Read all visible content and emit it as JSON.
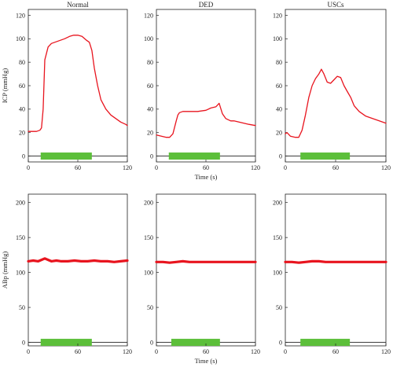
{
  "colors": {
    "trace": "#e8141e",
    "stim": "#5cbf3a",
    "frame": "#222222"
  },
  "chart_data": [
    {
      "type": "line",
      "title": "Normal",
      "ylabel": "ICP (mmHg)",
      "xlabel": "",
      "xlim": [
        0,
        120
      ],
      "ylim": [
        -5,
        125
      ],
      "xticks": [
        "0",
        "60",
        "120"
      ],
      "yticks": [
        "0",
        "20",
        "40",
        "60",
        "80",
        "100",
        "120"
      ],
      "stimulus": [
        15,
        77
      ],
      "x": [
        0,
        5,
        10,
        14,
        16,
        18,
        20,
        24,
        28,
        36,
        44,
        50,
        55,
        60,
        65,
        70,
        74,
        77,
        80,
        84,
        88,
        94,
        100,
        106,
        112,
        118,
        120
      ],
      "y": [
        21,
        21,
        21,
        22,
        24,
        40,
        82,
        93,
        96,
        98,
        100,
        102,
        103,
        103,
        102,
        99,
        97,
        90,
        75,
        60,
        48,
        40,
        35,
        32,
        29,
        27,
        26
      ]
    },
    {
      "type": "line",
      "title": "DED",
      "ylabel": "",
      "xlabel": "",
      "xlim": [
        0,
        120
      ],
      "ylim": [
        -5,
        125
      ],
      "xticks": [
        "0",
        "60",
        "120"
      ],
      "yticks": [
        "0",
        "20",
        "40",
        "60",
        "80",
        "100",
        "120"
      ],
      "stimulus": [
        15,
        77
      ],
      "x": [
        0,
        6,
        12,
        16,
        20,
        24,
        26,
        28,
        32,
        40,
        50,
        60,
        66,
        72,
        76,
        80,
        84,
        90,
        94,
        100,
        106,
        112,
        120
      ],
      "y": [
        18,
        17,
        16,
        16,
        19,
        30,
        35,
        37,
        38,
        38,
        38,
        39,
        41,
        42,
        45,
        36,
        32,
        30,
        30,
        29,
        28,
        27,
        26
      ]
    },
    {
      "type": "line",
      "title": "USCs",
      "ylabel": "",
      "xlabel": "",
      "xlim": [
        0,
        120
      ],
      "ylim": [
        -5,
        125
      ],
      "xticks": [
        "0",
        "60",
        "120"
      ],
      "yticks": [
        "0",
        "20",
        "40",
        "60",
        "80",
        "100",
        "120"
      ],
      "stimulus": [
        18,
        77
      ],
      "x": [
        0,
        2,
        6,
        12,
        16,
        20,
        24,
        28,
        32,
        36,
        40,
        43,
        46,
        50,
        54,
        58,
        62,
        66,
        70,
        74,
        78,
        82,
        88,
        96,
        104,
        112,
        120
      ],
      "y": [
        19,
        20,
        17,
        16,
        16,
        22,
        35,
        50,
        60,
        66,
        70,
        74,
        70,
        63,
        62,
        65,
        68,
        67,
        60,
        55,
        50,
        43,
        38,
        34,
        32,
        30,
        28
      ]
    },
    {
      "type": "line",
      "title": "",
      "ylabel": "ABp (mmHg)",
      "xlabel": "",
      "xlim": [
        0,
        120
      ],
      "ylim": [
        -5,
        212
      ],
      "xticks": [
        "0",
        "60",
        "120"
      ],
      "yticks": [
        "0",
        "50",
        "100",
        "150",
        "200"
      ],
      "stimulus": [
        15,
        77
      ],
      "x": [
        0,
        6,
        12,
        16,
        20,
        24,
        28,
        34,
        40,
        48,
        56,
        64,
        72,
        80,
        88,
        96,
        104,
        112,
        120
      ],
      "y": [
        116,
        117,
        116,
        118,
        120,
        118,
        116,
        117,
        116,
        116,
        117,
        116,
        116,
        117,
        116,
        116,
        115,
        116,
        117
      ]
    },
    {
      "type": "line",
      "title": "",
      "ylabel": "",
      "xlabel": "Time (s)",
      "xlim": [
        0,
        120
      ],
      "ylim": [
        -5,
        212
      ],
      "xticks": [
        "0",
        "60",
        "120"
      ],
      "yticks": [
        "0",
        "50",
        "100",
        "150",
        "200"
      ],
      "stimulus": [
        18,
        77
      ],
      "x": [
        0,
        8,
        16,
        24,
        32,
        40,
        48,
        56,
        64,
        72,
        80,
        88,
        96,
        104,
        112,
        120
      ],
      "y": [
        115,
        115,
        114,
        115,
        116,
        115,
        115,
        115,
        115,
        115,
        115,
        115,
        115,
        115,
        115,
        115
      ]
    },
    {
      "type": "line",
      "title": "",
      "ylabel": "",
      "xlabel": "",
      "xlim": [
        0,
        120
      ],
      "ylim": [
        -5,
        212
      ],
      "xticks": [
        "0",
        "60",
        "120"
      ],
      "yticks": [
        "0",
        "50",
        "100",
        "150",
        "200"
      ],
      "stimulus": [
        18,
        77
      ],
      "x": [
        0,
        8,
        16,
        24,
        32,
        40,
        48,
        56,
        64,
        72,
        80,
        88,
        96,
        104,
        112,
        120
      ],
      "y": [
        115,
        115,
        114,
        115,
        116,
        116,
        115,
        115,
        115,
        115,
        115,
        115,
        115,
        115,
        115,
        115
      ]
    }
  ],
  "shared_xlabel": "Time (s)"
}
